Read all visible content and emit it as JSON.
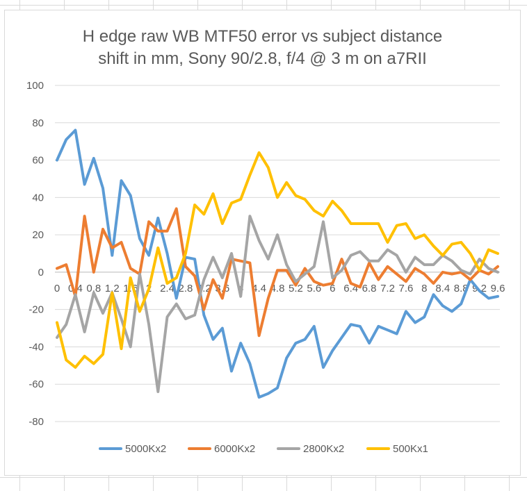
{
  "chart_data": {
    "type": "line",
    "title_line1": "H edge raw WB MTF50 error vs subject distance",
    "title_line2": "shift in mm, Sony 90/2.8, f/4 @ 3  m on a7RII",
    "ylim": [
      -80,
      100
    ],
    "y_ticks": [
      -80,
      -60,
      -40,
      -20,
      0,
      20,
      40,
      60,
      80,
      100
    ],
    "grid": true,
    "legend": "bottom",
    "x": [
      0,
      0.2,
      0.4,
      0.6,
      0.8,
      1.0,
      1.2,
      1.4,
      1.6,
      1.8,
      2.0,
      2.2,
      2.4,
      2.6,
      2.8,
      3.0,
      3.2,
      3.4,
      3.6,
      3.8,
      4.0,
      4.2,
      4.4,
      4.6,
      4.8,
      5.0,
      5.2,
      5.4,
      5.6,
      5.8,
      6.0,
      6.2,
      6.4,
      6.6,
      6.8,
      7.0,
      7.2,
      7.4,
      7.6,
      7.8,
      8.0,
      8.2,
      8.4,
      8.6,
      8.8,
      9.0,
      9.2,
      9.4,
      9.6
    ],
    "x_tick_labels": [
      "0",
      "0.4",
      "0.8",
      "1.2",
      "1.6",
      "2",
      "2.4",
      "2.8",
      "3.2",
      "3.6",
      "4",
      "4.4",
      "4.8",
      "5.2",
      "5.6",
      "6",
      "6.4",
      "6.8",
      "7.2",
      "7.6",
      "8",
      "8.4",
      "8.8",
      "9.2",
      "9.6"
    ],
    "series": [
      {
        "name": "5000Kx2",
        "color": "#5b9bd5",
        "values": [
          60,
          71,
          76,
          47,
          61,
          45,
          9,
          49,
          41,
          18,
          9,
          29,
          10,
          -14,
          8,
          7,
          -23,
          -36,
          -30,
          -53,
          -38,
          -49,
          -67,
          -65,
          -62,
          -46,
          -38,
          -36,
          -29,
          -51,
          -42,
          -35,
          -28,
          -29,
          -38,
          -29,
          -31,
          -33,
          -21,
          -27,
          -24,
          -12,
          -18,
          -21,
          -17,
          -4,
          -10,
          -14,
          -13
        ]
      },
      {
        "name": "6000Kx2",
        "color": "#ed7d31",
        "values": [
          2,
          4,
          -13,
          30,
          0,
          23,
          13,
          16,
          2,
          -1,
          27,
          22,
          22,
          34,
          3,
          -2,
          -20,
          -4,
          -14,
          7,
          6,
          5,
          -34,
          -14,
          1,
          1,
          -7,
          2,
          -5,
          -7,
          -6,
          7,
          -6,
          -8,
          5,
          -4,
          3,
          -1,
          -5,
          2,
          -1,
          -6,
          0,
          -1,
          0,
          -4,
          1,
          -1,
          3
        ]
      },
      {
        "name": "2800Kx2",
        "color": "#a5a5a5",
        "values": [
          -35,
          -28,
          -12,
          -32,
          -11,
          -22,
          -11,
          -25,
          -40,
          -1,
          -28,
          -64,
          -24,
          -17,
          -25,
          -23,
          -4,
          8,
          -3,
          10,
          -13,
          30,
          17,
          7,
          20,
          4,
          -5,
          -1,
          3,
          27,
          -3,
          1,
          9,
          11,
          6,
          6,
          12,
          9,
          0,
          8,
          4,
          4,
          9,
          6,
          1,
          -1,
          7,
          2,
          0
        ]
      },
      {
        "name": "500Kx1",
        "color": "#ffc000",
        "values": [
          -27,
          -47,
          -51,
          -45,
          -49,
          -44,
          -11,
          -41,
          -3,
          -21,
          -9,
          13,
          -6,
          -3,
          10,
          36,
          31,
          42,
          26,
          37,
          39,
          52,
          64,
          56,
          40,
          48,
          41,
          39,
          33,
          30,
          38,
          33,
          26,
          26,
          26,
          26,
          16,
          25,
          26,
          18,
          20,
          14,
          9,
          15,
          16,
          10,
          1,
          12,
          10
        ]
      }
    ]
  }
}
